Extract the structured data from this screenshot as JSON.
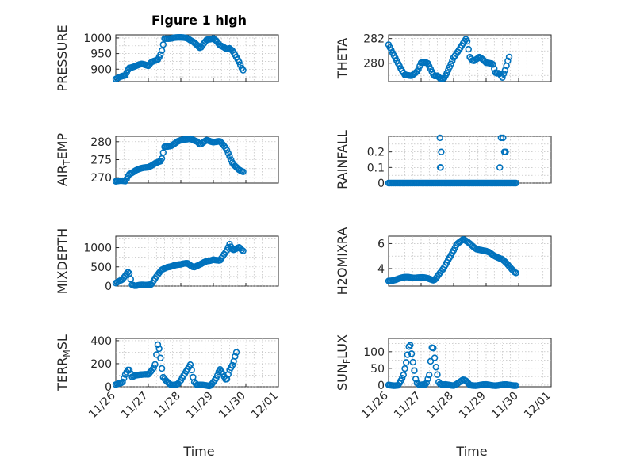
{
  "figure": {
    "title": "Figure 1 high",
    "marker_color": "#0072bd",
    "xlabel": "Time",
    "x_tick_labels": [
      "11/26",
      "11/27",
      "11/28",
      "11/29",
      "11/30",
      "12/01"
    ]
  },
  "chart_data": [
    {
      "id": "pressure",
      "type": "scatter",
      "ylabel": "PRESSURE",
      "ylabel_sub": "",
      "ylim": [
        860,
        1010
      ],
      "yticks": [
        900,
        950,
        1000
      ],
      "xlim": [
        0,
        5
      ],
      "knots": [
        [
          0,
          868
        ],
        [
          0.3,
          880
        ],
        [
          0.4,
          905
        ],
        [
          0.6,
          910
        ],
        [
          0.8,
          915
        ],
        [
          1.0,
          912
        ],
        [
          1.1,
          925
        ],
        [
          1.3,
          930
        ],
        [
          1.4,
          950
        ],
        [
          1.5,
          997
        ],
        [
          1.8,
          1002
        ],
        [
          2.0,
          1000
        ],
        [
          2.2,
          1000
        ],
        [
          2.4,
          988
        ],
        [
          2.6,
          965
        ],
        [
          2.8,
          995
        ],
        [
          3.0,
          1000
        ],
        [
          3.1,
          990
        ],
        [
          3.2,
          975
        ],
        [
          3.4,
          965
        ],
        [
          3.5,
          968
        ],
        [
          3.6,
          960
        ],
        [
          3.8,
          920
        ],
        [
          3.9,
          895
        ]
      ]
    },
    {
      "id": "theta",
      "type": "scatter",
      "ylabel": "THETA",
      "ylabel_sub": "",
      "ylim": [
        278.5,
        282.3
      ],
      "yticks": [
        280,
        282
      ],
      "xlim": [
        0,
        5
      ],
      "knots": [
        [
          0,
          281.5
        ],
        [
          0.2,
          280.5
        ],
        [
          0.4,
          279.4
        ],
        [
          0.5,
          279
        ],
        [
          0.7,
          279
        ],
        [
          0.9,
          279.4
        ],
        [
          1.0,
          280
        ],
        [
          1.2,
          280
        ],
        [
          1.4,
          279
        ],
        [
          1.5,
          279
        ],
        [
          1.6,
          278.7
        ],
        [
          1.7,
          278.7
        ],
        [
          1.8,
          279.2
        ],
        [
          2.0,
          280.5
        ],
        [
          2.2,
          281.2
        ],
        [
          2.4,
          282
        ],
        [
          2.5,
          280.5
        ],
        [
          2.6,
          280.2
        ],
        [
          2.8,
          280.5
        ],
        [
          3.0,
          280
        ],
        [
          3.2,
          280
        ],
        [
          3.3,
          279.2
        ],
        [
          3.4,
          279.2
        ],
        [
          3.5,
          278.8
        ],
        [
          3.6,
          279.5
        ],
        [
          3.7,
          280.5
        ]
      ]
    },
    {
      "id": "air_temp",
      "type": "scatter",
      "ylabel": "AIR",
      "ylabel_sub": "T",
      "ylabel_rest": "EMP",
      "ylim": [
        268.5,
        281.5
      ],
      "yticks": [
        270,
        275,
        280
      ],
      "xlim": [
        0,
        5
      ],
      "knots": [
        [
          0,
          269
        ],
        [
          0.3,
          269
        ],
        [
          0.4,
          271
        ],
        [
          0.6,
          272
        ],
        [
          0.8,
          272.5
        ],
        [
          1.0,
          273
        ],
        [
          1.2,
          274
        ],
        [
          1.4,
          274.5
        ],
        [
          1.5,
          278.5
        ],
        [
          1.7,
          279
        ],
        [
          1.9,
          280
        ],
        [
          2.1,
          280.5
        ],
        [
          2.3,
          281
        ],
        [
          2.5,
          280
        ],
        [
          2.6,
          279
        ],
        [
          2.8,
          280.5
        ],
        [
          3.0,
          280
        ],
        [
          3.2,
          280
        ],
        [
          3.4,
          278
        ],
        [
          3.6,
          274
        ],
        [
          3.8,
          272
        ],
        [
          3.9,
          271.5
        ]
      ]
    },
    {
      "id": "rainfall",
      "type": "scatter",
      "ylabel": "RAINFALL",
      "ylabel_sub": "",
      "ylim": [
        0,
        0.3
      ],
      "yticks": [
        0,
        0.1,
        0.2
      ],
      "xlim": [
        0,
        5
      ],
      "knots": [
        [
          0,
          0
        ],
        [
          3.9,
          0
        ]
      ],
      "spikes": [
        [
          1.58,
          0.29
        ],
        [
          1.6,
          0.1
        ],
        [
          1.62,
          0.2
        ],
        [
          1.59,
          0.1
        ],
        [
          3.42,
          0.1
        ],
        [
          3.46,
          0.29
        ],
        [
          3.52,
          0.29
        ],
        [
          3.56,
          0.2
        ],
        [
          3.6,
          0.2
        ]
      ]
    },
    {
      "id": "mixdepth",
      "type": "scatter",
      "ylabel": "MIXDEPTH",
      "ylabel_sub": "",
      "ylim": [
        0,
        1300
      ],
      "yticks": [
        0,
        500,
        1000
      ],
      "xlim": [
        0,
        5
      ],
      "knots": [
        [
          0,
          80
        ],
        [
          0.2,
          150
        ],
        [
          0.4,
          400
        ],
        [
          0.5,
          50
        ],
        [
          0.6,
          10
        ],
        [
          0.9,
          20
        ],
        [
          1.1,
          60
        ],
        [
          1.2,
          200
        ],
        [
          1.4,
          400
        ],
        [
          1.6,
          500
        ],
        [
          1.8,
          550
        ],
        [
          2.0,
          550
        ],
        [
          2.2,
          600
        ],
        [
          2.4,
          500
        ],
        [
          2.6,
          550
        ],
        [
          2.8,
          650
        ],
        [
          3.0,
          700
        ],
        [
          3.2,
          650
        ],
        [
          3.4,
          900
        ],
        [
          3.5,
          1100
        ],
        [
          3.6,
          950
        ],
        [
          3.8,
          1000
        ],
        [
          3.9,
          900
        ]
      ]
    },
    {
      "id": "h2omixra",
      "type": "scatter",
      "ylabel": "H2OMIXRA",
      "ylabel_sub": "",
      "ylim": [
        2.6,
        6.6
      ],
      "yticks": [
        4,
        6
      ],
      "xlim": [
        0,
        5
      ],
      "knots": [
        [
          0,
          3
        ],
        [
          0.3,
          3.2
        ],
        [
          0.6,
          3.3
        ],
        [
          0.9,
          3.3
        ],
        [
          1.2,
          3.2
        ],
        [
          1.4,
          3.1
        ],
        [
          1.5,
          3.4
        ],
        [
          1.7,
          4
        ],
        [
          1.9,
          5
        ],
        [
          2.1,
          6
        ],
        [
          2.3,
          6.3
        ],
        [
          2.5,
          6
        ],
        [
          2.7,
          5.6
        ],
        [
          2.9,
          5.4
        ],
        [
          3.1,
          5.3
        ],
        [
          3.3,
          5.0
        ],
        [
          3.5,
          4.7
        ],
        [
          3.7,
          4.2
        ],
        [
          3.9,
          3.7
        ]
      ]
    },
    {
      "id": "terr_msl",
      "type": "scatter",
      "ylabel": "TERR",
      "ylabel_sub": "M",
      "ylabel_rest": "SL",
      "ylim": [
        0,
        420
      ],
      "yticks": [
        0,
        200,
        400
      ],
      "xlim": [
        0,
        5
      ],
      "knots": [
        [
          0,
          20
        ],
        [
          0.2,
          30
        ],
        [
          0.3,
          110
        ],
        [
          0.4,
          160
        ],
        [
          0.5,
          90
        ],
        [
          0.6,
          100
        ],
        [
          0.8,
          100
        ],
        [
          1.0,
          110
        ],
        [
          1.2,
          180
        ],
        [
          1.3,
          380
        ],
        [
          1.35,
          300
        ],
        [
          1.45,
          80
        ],
        [
          1.55,
          50
        ],
        [
          1.7,
          20
        ],
        [
          1.9,
          20
        ],
        [
          2.0,
          50
        ],
        [
          2.2,
          150
        ],
        [
          2.3,
          200
        ],
        [
          2.4,
          50
        ],
        [
          2.5,
          15
        ],
        [
          2.7,
          10
        ],
        [
          2.9,
          10
        ],
        [
          3.1,
          80
        ],
        [
          3.2,
          150
        ],
        [
          3.3,
          100
        ],
        [
          3.4,
          50
        ],
        [
          3.5,
          150
        ],
        [
          3.6,
          200
        ],
        [
          3.7,
          300
        ]
      ]
    },
    {
      "id": "sun_flux",
      "type": "scatter",
      "ylabel": "SUN",
      "ylabel_sub": "F",
      "ylabel_rest": "LUX",
      "ylim": [
        -5,
        140
      ],
      "yticks": [
        0,
        50,
        100
      ],
      "xlim": [
        0,
        5
      ],
      "knots": [
        [
          0,
          0
        ],
        [
          0.3,
          0
        ],
        [
          0.45,
          25
        ],
        [
          0.55,
          70
        ],
        [
          0.65,
          130
        ],
        [
          0.75,
          70
        ],
        [
          0.85,
          10
        ],
        [
          0.95,
          0
        ],
        [
          1.15,
          0
        ],
        [
          1.25,
          30
        ],
        [
          1.35,
          130
        ],
        [
          1.45,
          60
        ],
        [
          1.55,
          5
        ],
        [
          1.65,
          0
        ],
        [
          2.0,
          0
        ],
        [
          2.2,
          10
        ],
        [
          2.3,
          15
        ],
        [
          2.4,
          10
        ],
        [
          2.5,
          0
        ],
        [
          3.9,
          0
        ]
      ]
    }
  ]
}
